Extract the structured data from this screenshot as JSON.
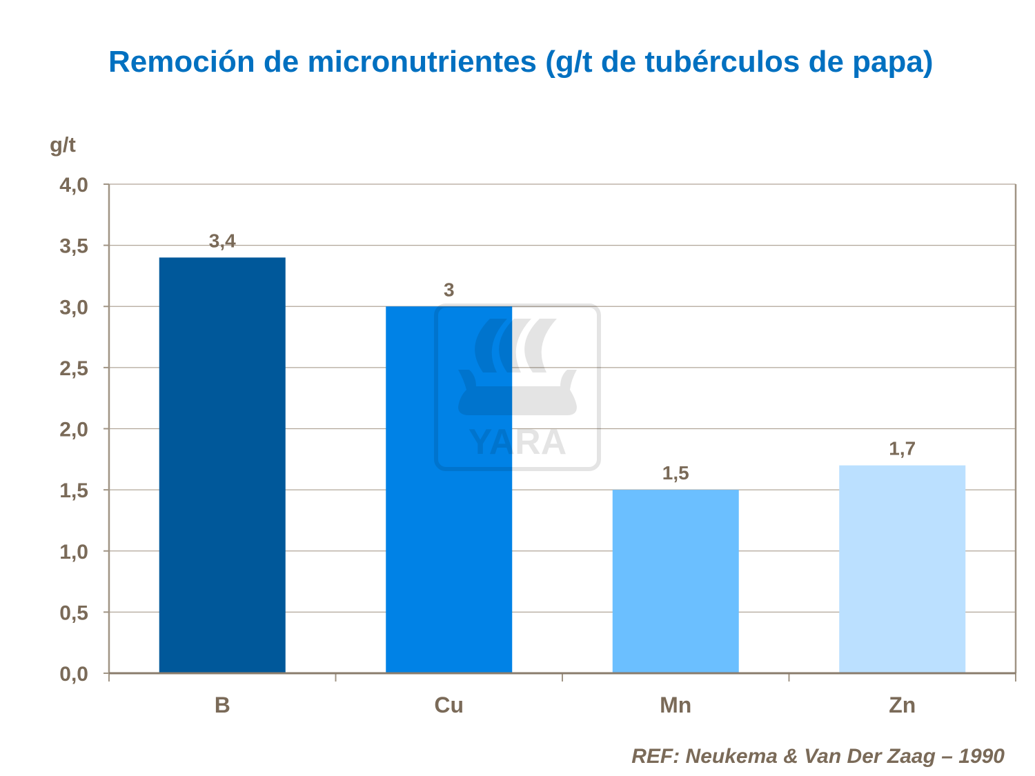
{
  "chart_data": {
    "type": "bar",
    "title": "Remoción de micronutrientes (g/t de tubérculos de papa)",
    "ylabel": "g/t",
    "xlabel": "",
    "categories": [
      "B",
      "Cu",
      "Mn",
      "Zn"
    ],
    "values": [
      3.4,
      3,
      1.5,
      1.7
    ],
    "data_labels": [
      "3,4",
      "3",
      "1,5",
      "1,7"
    ],
    "colors": [
      "#00589A",
      "#0082E6",
      "#6BBFFF",
      "#BBE0FF"
    ],
    "ylim": [
      0,
      4
    ],
    "yticks": [
      "0,0",
      "0,5",
      "1,0",
      "1,5",
      "2,0",
      "2,5",
      "3,0",
      "3,5",
      "4,0"
    ],
    "grid": true,
    "legend": "none"
  },
  "reference": "REF: Neukema  & Van Der Zaag – 1990",
  "watermark": "YARA"
}
